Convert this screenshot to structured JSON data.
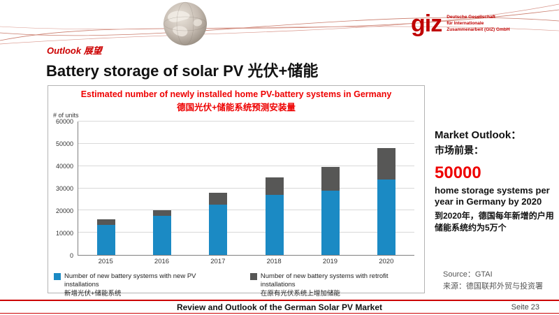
{
  "logo": {
    "text": "giz",
    "tagline_lines": [
      "Deutsche Gesellschaft",
      "für Internationale",
      "Zusammenarbeit (GIZ) GmbH"
    ]
  },
  "header": {
    "section": "Outlook 展望",
    "title": "Battery storage of solar PV 光伏+储能"
  },
  "chart": {
    "title_line1": "Estimated number of newly installed home PV-battery systems in Germany",
    "title_line2": "德国光伏+储能系统预测安装量",
    "y_axis_label": "# of units"
  },
  "chart_data": {
    "type": "bar",
    "stacked": true,
    "categories": [
      "2015",
      "2016",
      "2017",
      "2018",
      "2019",
      "2020"
    ],
    "series": [
      {
        "name": "Number of new battery systems with new PV installations",
        "name_zh": "新增光伏+储能系统",
        "color": "#1b8ac4",
        "values": [
          13500,
          17500,
          22500,
          27000,
          29000,
          34000
        ]
      },
      {
        "name": "Number of new battery systems with retrofit installations",
        "name_zh": "在原有光伏系统上增加储能",
        "color": "#575756",
        "values": [
          2500,
          2500,
          5500,
          8000,
          10500,
          14000
        ]
      }
    ],
    "ylim": [
      0,
      60000
    ],
    "ytick_step": 10000,
    "grid": true,
    "legend_position": "bottom"
  },
  "sidebar": {
    "title_en": "Market Outlook：",
    "title_zh": "市场前景：",
    "highlight_number": "50000",
    "desc_en": "home storage systems per year in Germany by 2020",
    "desc_zh": "到2020年，德国每年新增的户用储能系统约为5万个"
  },
  "source": {
    "line1": "Source：GTAI",
    "line2": "来源：德国联邦外贸与投资署"
  },
  "footer": {
    "title": "Review and Outlook of the German Solar PV Market",
    "page_label": "Seite 23"
  },
  "colors": {
    "accent_red": "#cc0000",
    "bar_blue": "#1b8ac4",
    "bar_gray": "#575756"
  }
}
